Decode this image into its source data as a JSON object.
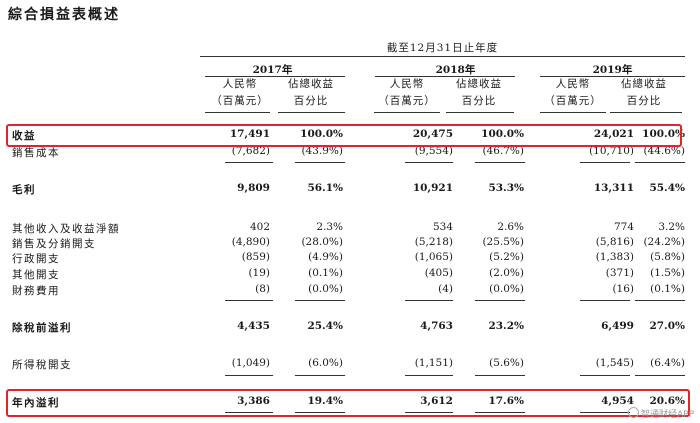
{
  "title": "綜合損益表概述",
  "period_header": "截至12月31日止年度",
  "years": [
    "2017年",
    "2018年",
    "2019年"
  ],
  "col_header_amount": [
    "人民幣",
    "（百萬元）"
  ],
  "col_header_pct": [
    "佔總收益",
    "百分比"
  ],
  "rows": [
    {
      "label": "收益",
      "vals": [
        "17,491",
        "100.0%",
        "20,475",
        "100.0%",
        "24,021",
        "100.0%"
      ]
    },
    {
      "label": "銷售成本",
      "vals": [
        "(7,682)",
        "(43.9%)",
        "(9,554)",
        "(46.7%)",
        "(10,710)",
        "(44.6%)"
      ]
    },
    {
      "label": "毛利",
      "vals": [
        "9,809",
        "56.1%",
        "10,921",
        "53.3%",
        "13,311",
        "55.4%"
      ]
    },
    {
      "label": "其他收入及收益淨額",
      "vals": [
        "402",
        "2.3%",
        "534",
        "2.6%",
        "774",
        "3.2%"
      ]
    },
    {
      "label": "銷售及分銷開支",
      "vals": [
        "(4,890)",
        "(28.0%)",
        "(5,218)",
        "(25.5%)",
        "(5,816)",
        "(24.2%)"
      ]
    },
    {
      "label": "行政開支",
      "vals": [
        "(859)",
        "(4.9%)",
        "(1,065)",
        "(5.2%)",
        "(1,383)",
        "(5.8%)"
      ]
    },
    {
      "label": "其他開支",
      "vals": [
        "(19)",
        "(0.1%)",
        "(405)",
        "(2.0%)",
        "(371)",
        "(1.5%)"
      ]
    },
    {
      "label": "財務費用",
      "vals": [
        "(8)",
        "(0.0%)",
        "(4)",
        "(0.0%)",
        "(16)",
        "(0.1%)"
      ]
    },
    {
      "label": "除稅前溢利",
      "vals": [
        "4,435",
        "25.4%",
        "4,763",
        "23.2%",
        "6,499",
        "27.0%"
      ]
    },
    {
      "label": "所得稅開支",
      "vals": [
        "(1,049)",
        "(6.0%)",
        "(1,151)",
        "(5.6%)",
        "(1,545)",
        "(6.4%)"
      ]
    },
    {
      "label": "年內溢利",
      "vals": [
        "3,386",
        "19.4%",
        "3,612",
        "17.6%",
        "4,954",
        "20.6%"
      ]
    }
  ],
  "watermark": "智通财经APP",
  "highlight_color": "#e0242b"
}
